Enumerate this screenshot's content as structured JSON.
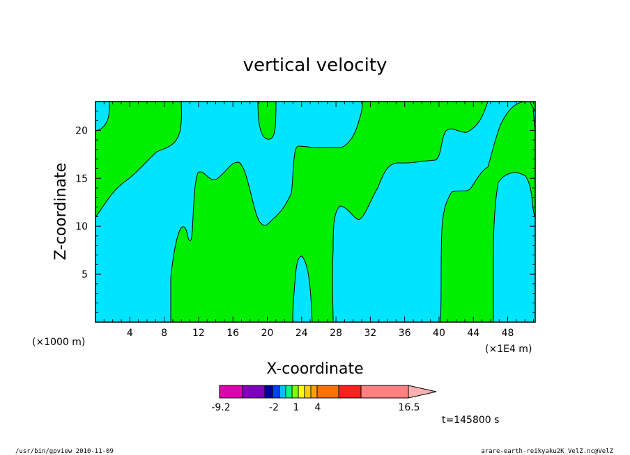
{
  "chart_data": {
    "type": "heatmap",
    "title": "vertical velocity",
    "xlabel": "X-coordinate",
    "ylabel": "Z-coordinate",
    "x_unit_left": "(×1000 m)",
    "x_unit_right": "(×1E4 m)",
    "x_ticks": [
      "4",
      "8",
      "12",
      "16",
      "20",
      "24",
      "28",
      "32",
      "36",
      "40",
      "44",
      "48"
    ],
    "y_ticks": [
      "5",
      "10",
      "15",
      "20"
    ],
    "xlim": [
      0,
      51.2
    ],
    "ylim": [
      0,
      23
    ],
    "colorbar": {
      "colors": [
        "#e000b0",
        "#8000c0",
        "#0000a0",
        "#0040ff",
        "#00c0ff",
        "#00ff80",
        "#80ff00",
        "#ffff00",
        "#ffd000",
        "#ffa000",
        "#ff7000",
        "#ff2020",
        "#ff8080",
        "#ffb0b0"
      ],
      "labels": [
        "-9.2",
        "-2",
        "1",
        "4",
        "16.5"
      ]
    },
    "fill_colors": {
      "negative": "#00e5ff",
      "positive": "#00ee00"
    },
    "time_label": "t=145800 s"
  },
  "footer": {
    "left": "/usr/bin/gpview   2010-11-09",
    "right": "arare-earth-reikyaku2K_VelZ.nc@VelZ"
  }
}
